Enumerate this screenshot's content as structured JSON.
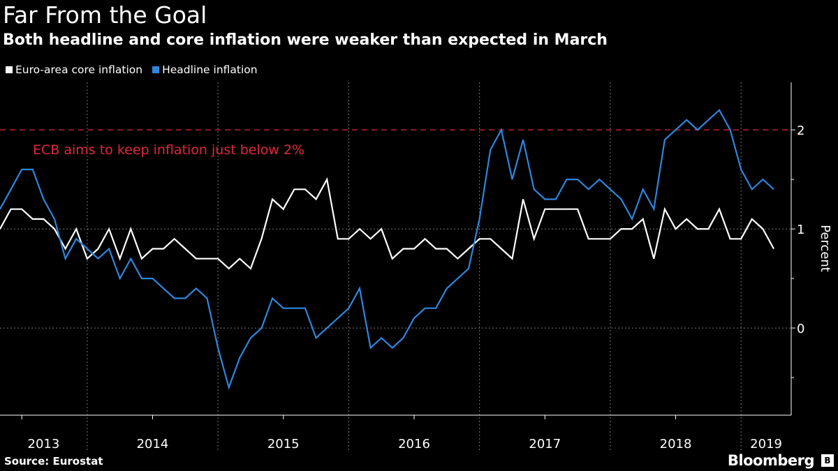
{
  "title": "Far From the Goal",
  "subtitle": "Both headline and core inflation were weaker than expected in March",
  "source": "Source: Eurostat",
  "brand": "Bloomberg",
  "chart_data": {
    "type": "line",
    "title": "Far From the Goal",
    "subtitle": "Both headline and core inflation were weaker than expected in March",
    "ylabel": "Percent",
    "xlabel": "",
    "ylim": [
      -0.88,
      2.48
    ],
    "yticks": [
      0,
      1,
      2
    ],
    "ytick_labels": [
      "0",
      "1",
      "2"
    ],
    "year_labels": [
      "2013",
      "2014",
      "2015",
      "2016",
      "2017",
      "2018",
      "2019"
    ],
    "grid": true,
    "legend_position": "top-left",
    "x": [
      "2013-04",
      "2013-05",
      "2013-06",
      "2013-07",
      "2013-08",
      "2013-09",
      "2013-10",
      "2013-11",
      "2013-12",
      "2014-01",
      "2014-02",
      "2014-03",
      "2014-04",
      "2014-05",
      "2014-06",
      "2014-07",
      "2014-08",
      "2014-09",
      "2014-10",
      "2014-11",
      "2014-12",
      "2015-01",
      "2015-02",
      "2015-03",
      "2015-04",
      "2015-05",
      "2015-06",
      "2015-07",
      "2015-08",
      "2015-09",
      "2015-10",
      "2015-11",
      "2015-12",
      "2016-01",
      "2016-02",
      "2016-03",
      "2016-04",
      "2016-05",
      "2016-06",
      "2016-07",
      "2016-08",
      "2016-09",
      "2016-10",
      "2016-11",
      "2016-12",
      "2017-01",
      "2017-02",
      "2017-03",
      "2017-04",
      "2017-05",
      "2017-06",
      "2017-07",
      "2017-08",
      "2017-09",
      "2017-10",
      "2017-11",
      "2017-12",
      "2018-01",
      "2018-02",
      "2018-03",
      "2018-04",
      "2018-05",
      "2018-06",
      "2018-07",
      "2018-08",
      "2018-09",
      "2018-10",
      "2018-11",
      "2018-12",
      "2019-01",
      "2019-02",
      "2019-03"
    ],
    "series": [
      {
        "name": "Euro-area core inflation",
        "color": "#ffffff",
        "values": [
          1.0,
          1.2,
          1.2,
          1.1,
          1.1,
          1.0,
          0.8,
          1.0,
          0.7,
          0.8,
          1.0,
          0.7,
          1.0,
          0.7,
          0.8,
          0.8,
          0.9,
          0.8,
          0.7,
          0.7,
          0.7,
          0.6,
          0.7,
          0.6,
          0.9,
          1.3,
          1.2,
          1.4,
          1.4,
          1.3,
          1.5,
          0.9,
          0.9,
          1.0,
          0.9,
          1.0,
          0.7,
          0.8,
          0.8,
          0.9,
          0.8,
          0.8,
          0.7,
          0.8,
          0.9,
          0.9,
          0.8,
          0.7,
          1.3,
          0.9,
          1.2,
          1.2,
          1.2,
          1.2,
          0.9,
          0.9,
          0.9,
          1.0,
          1.0,
          1.1,
          0.7,
          1.2,
          1.0,
          1.1,
          1.0,
          1.0,
          1.2,
          0.9,
          0.9,
          1.1,
          1.0,
          0.8
        ]
      },
      {
        "name": "Headline inflation",
        "color": "#2f86de",
        "values": [
          1.2,
          1.4,
          1.6,
          1.6,
          1.3,
          1.1,
          0.7,
          0.9,
          0.8,
          0.7,
          0.8,
          0.5,
          0.7,
          0.5,
          0.5,
          0.4,
          0.3,
          0.3,
          0.4,
          0.3,
          -0.2,
          -0.6,
          -0.3,
          -0.1,
          0.0,
          0.3,
          0.2,
          0.2,
          0.2,
          -0.1,
          0.0,
          0.1,
          0.2,
          0.4,
          -0.2,
          -0.1,
          -0.2,
          -0.1,
          0.1,
          0.2,
          0.2,
          0.4,
          0.5,
          0.6,
          1.1,
          1.8,
          2.0,
          1.5,
          1.9,
          1.4,
          1.3,
          1.3,
          1.5,
          1.5,
          1.4,
          1.5,
          1.4,
          1.3,
          1.1,
          1.4,
          1.2,
          1.9,
          2.0,
          2.1,
          2.0,
          2.1,
          2.2,
          2.0,
          1.6,
          1.4,
          1.5,
          1.4
        ]
      }
    ],
    "reference_line": {
      "value": 2,
      "color": "#e0283c",
      "label": "ECB aims to keep inflation just below 2%"
    }
  }
}
